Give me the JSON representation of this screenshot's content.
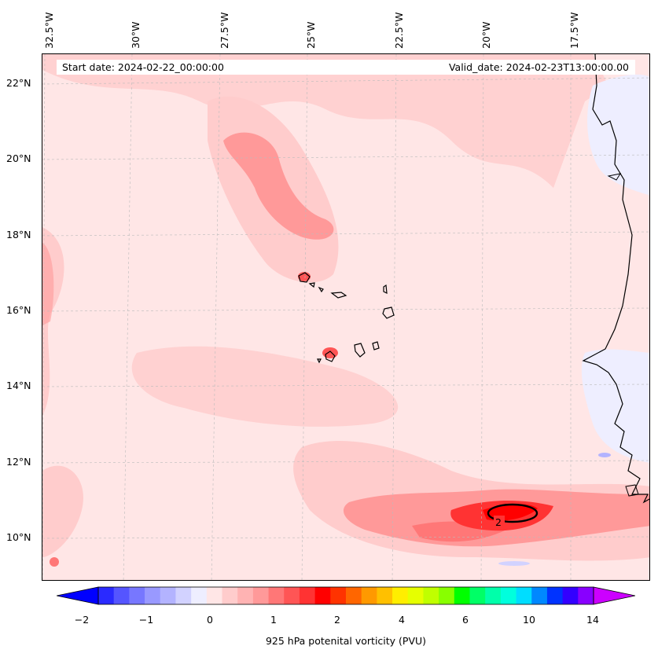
{
  "map": {
    "info": {
      "start_date": "Start date: 2024-02-22_00:00:00",
      "valid_date": "Valid_date: 2024-02-23T13:00:00.00"
    },
    "lon_labels": [
      "32.5°W",
      "30°W",
      "27.5°W",
      "25°W",
      "22.5°W",
      "20°W",
      "17.5°W"
    ],
    "lat_labels": [
      "22°N",
      "20°N",
      "18°N",
      "16°N",
      "14°N",
      "12°N",
      "10°N"
    ],
    "contour_label": "2",
    "colors": {
      "land_outline": "#000000",
      "background_field": "#ffe6e6",
      "low_pv": "#ffcccc",
      "mid_pv": "#ff9999",
      "high_pv": "#ff3333",
      "peak_pv": "#ff0000",
      "negative_pv": "#eeeeff"
    }
  },
  "colorbar": {
    "title": "925 hPa potenital vorticity (PVU)",
    "tick_labels": [
      "−2",
      "−1",
      "0",
      "1",
      "2",
      "4",
      "6",
      "10",
      "14"
    ],
    "colors": [
      "#0000ff",
      "#2a2aff",
      "#5555ff",
      "#7777ff",
      "#9999ff",
      "#b3b3ff",
      "#d2d2ff",
      "#eeeeff",
      "#ffe6e6",
      "#ffcccc",
      "#ffb3b3",
      "#ff9999",
      "#ff7777",
      "#ff5555",
      "#ff3333",
      "#ff0000",
      "#ff3300",
      "#ff6600",
      "#ff9900",
      "#ffc000",
      "#ffee00",
      "#e6ff00",
      "#c0ff00",
      "#88ff00",
      "#00ff00",
      "#00ff66",
      "#00ffaa",
      "#00ffdd",
      "#00ddff",
      "#0088ff",
      "#0033ff",
      "#3300ff",
      "#8800ff",
      "#cc00ff"
    ]
  }
}
